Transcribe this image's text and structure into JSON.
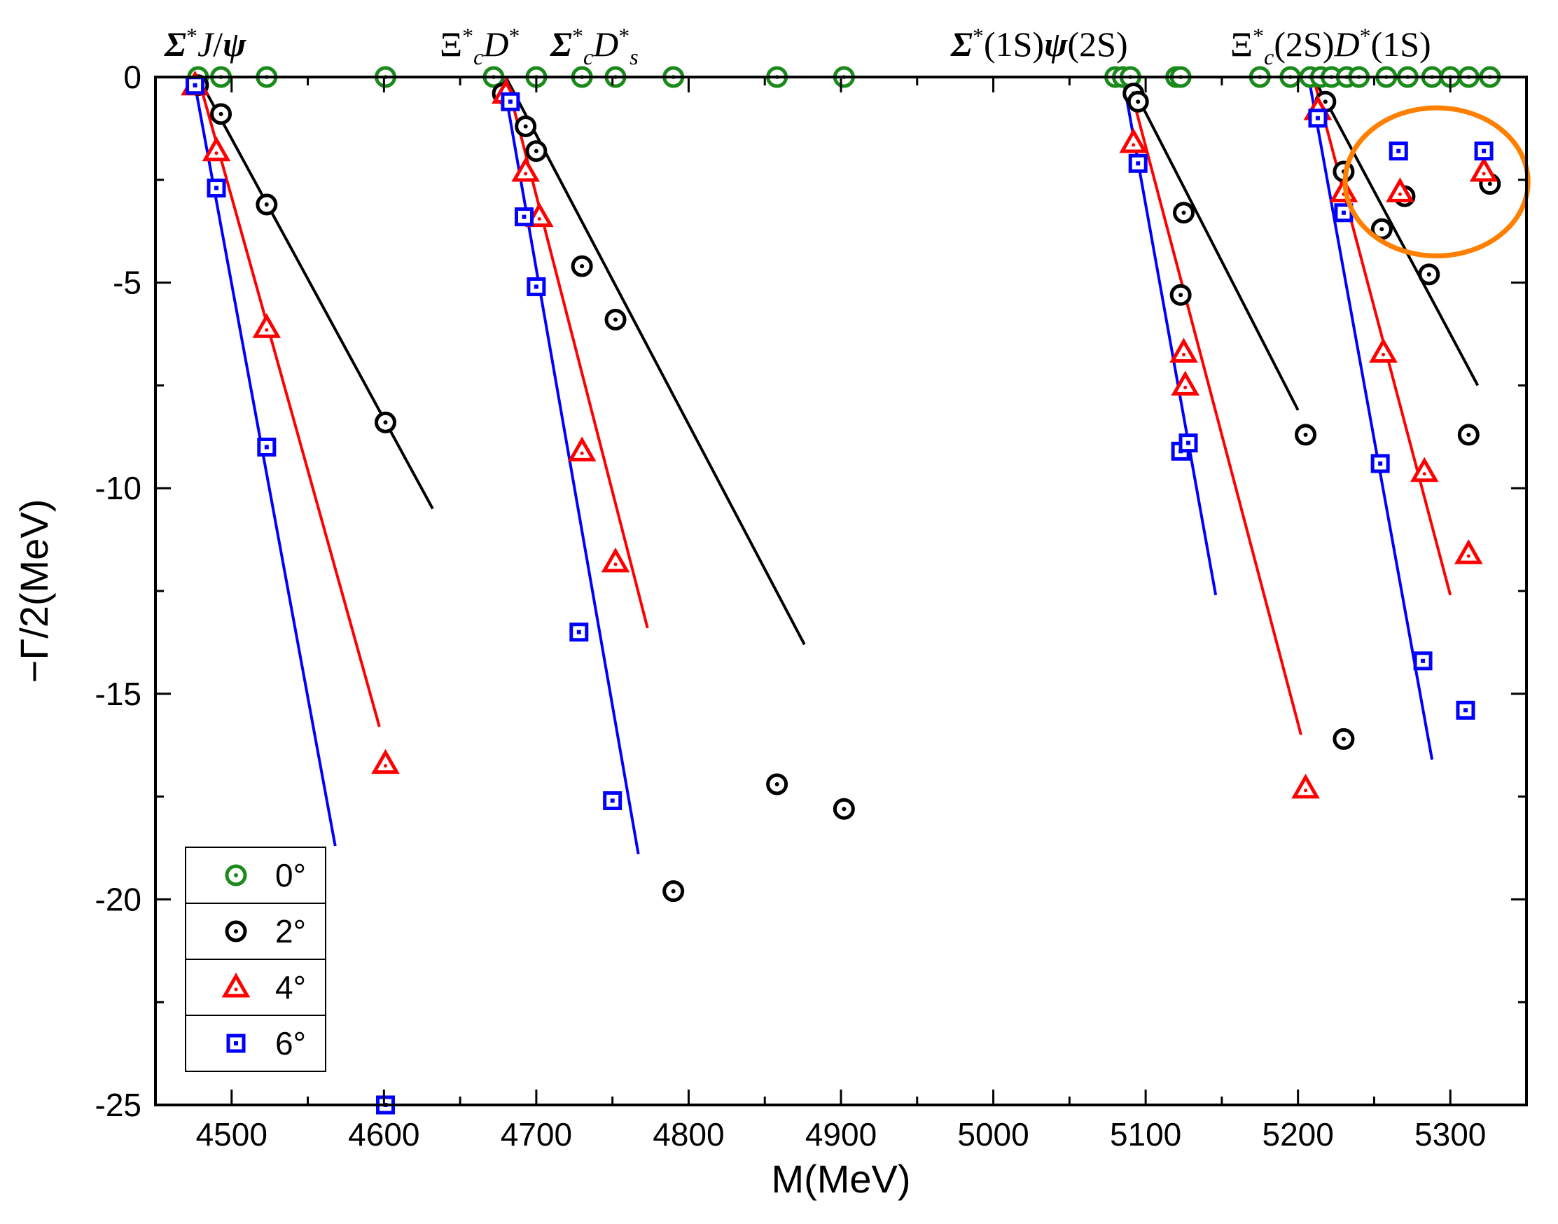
{
  "chart_data": {
    "type": "scatter",
    "xlabel": "M(MeV)",
    "ylabel": "−Γ/2(MeV)",
    "xlim": [
      4450,
      5350
    ],
    "ylim": [
      -25,
      0
    ],
    "x_ticks": [
      4500,
      4600,
      4700,
      4800,
      4900,
      5000,
      5100,
      5200,
      5300
    ],
    "y_ticks": [
      0,
      -5,
      -10,
      -15,
      -20,
      -25
    ],
    "thresholds": [
      {
        "label": "Σ*J/ψ",
        "x": 4478
      },
      {
        "label": "Ξc*D*",
        "x": 4680
      },
      {
        "label": "Σc*Ds*",
        "x": 4680
      },
      {
        "label": "Σ*(1S)ψ(2S)",
        "x": 5088
      },
      {
        "label": "Ξc*(2S)D*(1S)",
        "x": 5210
      }
    ],
    "series": [
      {
        "name": "0°",
        "color": "#1a8a1a",
        "marker": "circle",
        "points": [
          [
            4478,
            0
          ],
          [
            4493,
            0
          ],
          [
            4523,
            0
          ],
          [
            4601,
            0
          ],
          [
            4672,
            0
          ],
          [
            4700,
            0
          ],
          [
            4730,
            0
          ],
          [
            4752,
            0
          ],
          [
            4790,
            0
          ],
          [
            4858,
            0
          ],
          [
            4902,
            0
          ],
          [
            5080,
            0
          ],
          [
            5085,
            0
          ],
          [
            5090,
            0
          ],
          [
            5120,
            0
          ],
          [
            5123,
            0
          ],
          [
            5175,
            0
          ],
          [
            5195,
            0
          ],
          [
            5208,
            0
          ],
          [
            5215,
            0
          ],
          [
            5222,
            0
          ],
          [
            5232,
            0
          ],
          [
            5240,
            0
          ],
          [
            5258,
            0
          ],
          [
            5272,
            0
          ],
          [
            5288,
            0
          ],
          [
            5300,
            0
          ],
          [
            5312,
            0
          ],
          [
            5326,
            0
          ]
        ]
      },
      {
        "name": "2°",
        "color": "#000000",
        "marker": "circle",
        "points": [
          [
            4478,
            -0.2
          ],
          [
            4493,
            -0.9
          ],
          [
            4523,
            -3.1
          ],
          [
            4601,
            -8.4
          ],
          [
            4678,
            -0.4
          ],
          [
            4693,
            -1.2
          ],
          [
            4700,
            -1.8
          ],
          [
            4730,
            -4.6
          ],
          [
            4752,
            -5.9
          ],
          [
            4790,
            -19.8
          ],
          [
            4858,
            -17.2
          ],
          [
            4902,
            -17.8
          ],
          [
            5092,
            -0.4
          ],
          [
            5095,
            -0.6
          ],
          [
            5123,
            -5.3
          ],
          [
            5125,
            -3.3
          ],
          [
            5205,
            -8.7
          ],
          [
            5230,
            -16.1
          ],
          [
            5218,
            -0.6
          ],
          [
            5230,
            -2.3
          ],
          [
            5255,
            -3.7
          ],
          [
            5270,
            -2.9
          ],
          [
            5286,
            -4.8
          ],
          [
            5312,
            -8.7
          ],
          [
            5326,
            -2.6
          ]
        ]
      },
      {
        "name": "4°",
        "color": "#ff0000",
        "marker": "triangle",
        "points": [
          [
            4476,
            -0.2
          ],
          [
            4490,
            -1.8
          ],
          [
            4523,
            -6.1
          ],
          [
            4601,
            -16.7
          ],
          [
            4680,
            -0.4
          ],
          [
            4693,
            -2.3
          ],
          [
            4702,
            -3.4
          ],
          [
            4730,
            -9.1
          ],
          [
            4752,
            -11.8
          ],
          [
            5092,
            -1.6
          ],
          [
            5125,
            -6.7
          ],
          [
            5126,
            -7.5
          ],
          [
            5205,
            -17.3
          ],
          [
            5213,
            -0.8
          ],
          [
            5230,
            -2.8
          ],
          [
            5256,
            -6.7
          ],
          [
            5267,
            -2.8
          ],
          [
            5283,
            -9.6
          ],
          [
            5312,
            -11.6
          ],
          [
            5322,
            -2.3
          ]
        ]
      },
      {
        "name": "6°",
        "color": "#0000ff",
        "marker": "square",
        "points": [
          [
            4476,
            -0.2
          ],
          [
            4490,
            -2.7
          ],
          [
            4523,
            -9.0
          ],
          [
            4601,
            -25.0
          ],
          [
            4683,
            -0.6
          ],
          [
            4692,
            -3.4
          ],
          [
            4700,
            -5.1
          ],
          [
            4728,
            -13.5
          ],
          [
            4750,
            -17.6
          ],
          [
            5095,
            -2.1
          ],
          [
            5123,
            -9.1
          ],
          [
            5128,
            -8.9
          ],
          [
            5213,
            -1.0
          ],
          [
            5230,
            -3.3
          ],
          [
            5254,
            -9.4
          ],
          [
            5266,
            -1.8
          ],
          [
            5282,
            -14.2
          ],
          [
            5310,
            -15.4
          ],
          [
            5322,
            -1.8
          ]
        ]
      }
    ],
    "fit_lines": [
      {
        "color": "#000000",
        "x": [
          4478,
          4632
        ],
        "y": [
          0,
          -10.5
        ]
      },
      {
        "color": "#ff0000",
        "x": [
          4478,
          4597
        ],
        "y": [
          0,
          -15.8
        ]
      },
      {
        "color": "#0000ff",
        "x": [
          4475,
          4568
        ],
        "y": [
          0,
          -18.7
        ]
      },
      {
        "color": "#000000",
        "x": [
          4680,
          4876
        ],
        "y": [
          0,
          -13.8
        ]
      },
      {
        "color": "#ff0000",
        "x": [
          4680,
          4773
        ],
        "y": [
          0,
          -13.4
        ]
      },
      {
        "color": "#0000ff",
        "x": [
          4678,
          4767
        ],
        "y": [
          0,
          -18.9
        ]
      },
      {
        "color": "#000000",
        "x": [
          5088,
          5200
        ],
        "y": [
          0,
          -8.1
        ]
      },
      {
        "color": "#ff0000",
        "x": [
          5088,
          5202
        ],
        "y": [
          0,
          -16.0
        ]
      },
      {
        "color": "#0000ff",
        "x": [
          5085,
          5146
        ],
        "y": [
          0,
          -12.6
        ]
      },
      {
        "color": "#000000",
        "x": [
          5210,
          5318
        ],
        "y": [
          0,
          -7.5
        ]
      },
      {
        "color": "#ff0000",
        "x": [
          5210,
          5300
        ],
        "y": [
          0,
          -12.6
        ]
      },
      {
        "color": "#0000ff",
        "x": [
          5207,
          5288
        ],
        "y": [
          0,
          -16.6
        ]
      }
    ],
    "highlight": {
      "shape": "ellipse",
      "color": "#ff8000",
      "center": [
        5291,
        -2.55
      ],
      "rx_data": 60,
      "ry_data": 1.8
    },
    "legend": {
      "position": "bottom-left",
      "entries": [
        "0°",
        "2°",
        "4°",
        "6°"
      ]
    }
  }
}
